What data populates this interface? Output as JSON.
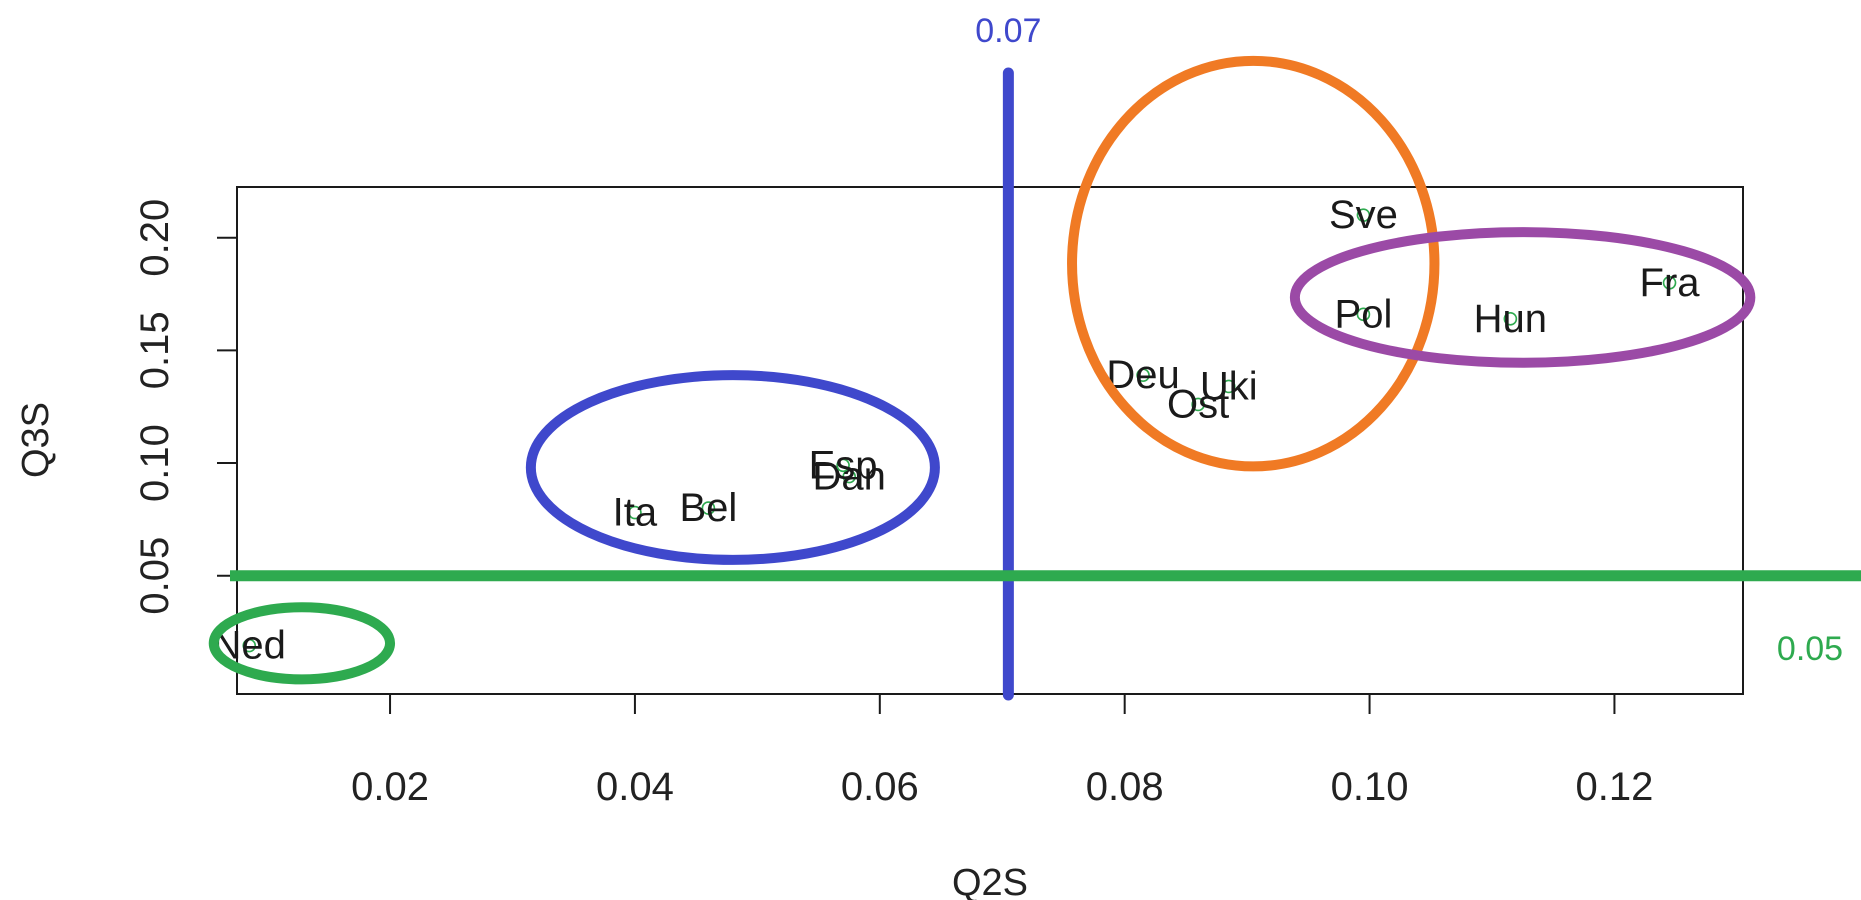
{
  "chart_data": {
    "type": "scatter",
    "title": "",
    "xlabel": "Q2S",
    "ylabel": "Q3S",
    "xlim": [
      0.0075,
      0.1305
    ],
    "ylim": [
      -0.0025,
      0.2225
    ],
    "x_ticks": [
      0.02,
      0.04,
      0.06,
      0.08,
      0.1,
      0.12
    ],
    "x_tick_labels": [
      "0.02",
      "0.04",
      "0.06",
      "0.08",
      "0.10",
      "0.12"
    ],
    "y_ticks": [
      0.05,
      0.1,
      0.15,
      0.2
    ],
    "y_tick_labels": [
      "0.05",
      "0.10",
      "0.15",
      "0.20"
    ],
    "grid": false,
    "points": [
      {
        "label": "Ned",
        "x": 0.0085,
        "y": 0.019
      },
      {
        "label": "Ita",
        "x": 0.04,
        "y": 0.078
      },
      {
        "label": "Bel",
        "x": 0.046,
        "y": 0.08
      },
      {
        "label": "Dan",
        "x": 0.0575,
        "y": 0.094
      },
      {
        "label": "Esp",
        "x": 0.057,
        "y": 0.099
      },
      {
        "label": "Deu",
        "x": 0.0815,
        "y": 0.139
      },
      {
        "label": "Ost",
        "x": 0.086,
        "y": 0.126
      },
      {
        "label": "Uki",
        "x": 0.0885,
        "y": 0.134
      },
      {
        "label": "Sve",
        "x": 0.0995,
        "y": 0.21
      },
      {
        "label": "Pol",
        "x": 0.0995,
        "y": 0.166
      },
      {
        "label": "Hun",
        "x": 0.1115,
        "y": 0.164
      },
      {
        "label": "Fra",
        "x": 0.1245,
        "y": 0.18
      }
    ],
    "reference_lines": [
      {
        "orientation": "vertical",
        "x": 0.0705,
        "label": "0.07",
        "color": "#3f48cc"
      },
      {
        "orientation": "horizontal",
        "y": 0.05,
        "label": "0.05",
        "color": "#2eaa4f"
      }
    ],
    "cluster_ellipses": [
      {
        "color": "#3f48cc",
        "cx": 0.048,
        "cy": 0.098,
        "rx": 0.0165,
        "ry": 0.041
      },
      {
        "color": "#f07a24",
        "cx": 0.0905,
        "cy": 0.1885,
        "rx": 0.0148,
        "ry": 0.09
      },
      {
        "color": "#9b4aa6",
        "cx": 0.1125,
        "cy": 0.1735,
        "rx": 0.0186,
        "ry": 0.029
      },
      {
        "color": "#2eaa4f",
        "cx": 0.0128,
        "cy": 0.02,
        "rx": 0.0072,
        "ry": 0.016
      }
    ],
    "point_color": "#2eaa4f"
  }
}
